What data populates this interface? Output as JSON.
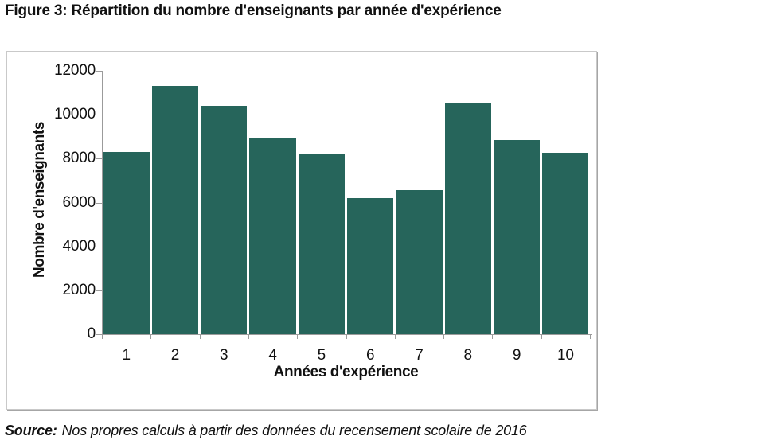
{
  "figure": {
    "title": "Figure 3: Répartition du nombre d'enseignants par année d'expérience",
    "source_label": "Source:",
    "source_text": "Nos propres calculs à partir des données du recensement scolaire de 2016"
  },
  "chart_data": {
    "type": "bar",
    "categories": [
      "1",
      "2",
      "3",
      "4",
      "5",
      "6",
      "7",
      "8",
      "9",
      "10"
    ],
    "values": [
      8300,
      11300,
      10400,
      8950,
      8200,
      6200,
      6550,
      10550,
      8850,
      8250
    ],
    "title": "",
    "xlabel": "Années d'expérience",
    "ylabel": "Nombre d'enseignants",
    "ylim": [
      0,
      12000
    ],
    "yticks": [
      0,
      2000,
      4000,
      6000,
      8000,
      10000,
      12000
    ],
    "grid": false,
    "legend_position": "none",
    "bar_color": "#26655B",
    "axis_color": "#9b9b9b",
    "text_color": "#111111"
  }
}
